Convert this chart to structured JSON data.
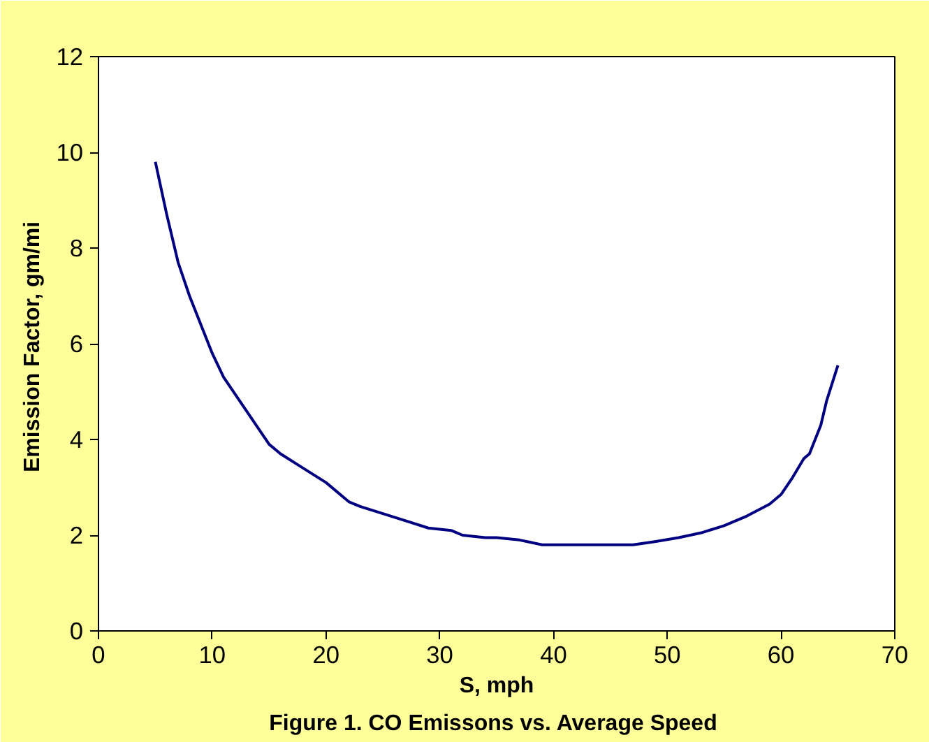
{
  "chart_data": {
    "type": "line",
    "xlabel": "S, mph",
    "ylabel": "Emission Factor,  gm/mi",
    "annotations": [
      "Figure 1.  CO Emissons vs. Average Speed"
    ],
    "x": [
      5,
      6,
      7,
      8,
      10,
      11,
      13,
      15,
      16,
      18,
      20,
      22,
      23,
      25,
      27,
      29,
      31,
      32,
      34,
      35,
      37,
      39,
      43,
      47,
      49,
      51,
      53,
      55,
      57,
      59,
      60,
      61,
      62,
      62.5,
      63,
      63.5,
      64,
      65
    ],
    "series": [
      {
        "color": "#000080",
        "values": [
          9.8,
          8.7,
          7.7,
          7.0,
          5.8,
          5.3,
          4.6,
          3.9,
          3.7,
          3.4,
          3.1,
          2.7,
          2.6,
          2.45,
          2.3,
          2.15,
          2.1,
          2.0,
          1.95,
          1.95,
          1.9,
          1.8,
          1.8,
          1.8,
          1.87,
          1.95,
          2.05,
          2.2,
          2.4,
          2.65,
          2.85,
          3.2,
          3.6,
          3.7,
          4.0,
          4.3,
          4.8,
          5.55
        ]
      }
    ],
    "xlim": [
      0,
      70
    ],
    "ylim": [
      0,
      12
    ],
    "xticks": [
      0,
      10,
      20,
      30,
      40,
      50,
      60,
      70
    ],
    "yticks": [
      0,
      2,
      4,
      6,
      8,
      10,
      12
    ],
    "grid": false,
    "marker": "none",
    "line_style": "solid"
  }
}
